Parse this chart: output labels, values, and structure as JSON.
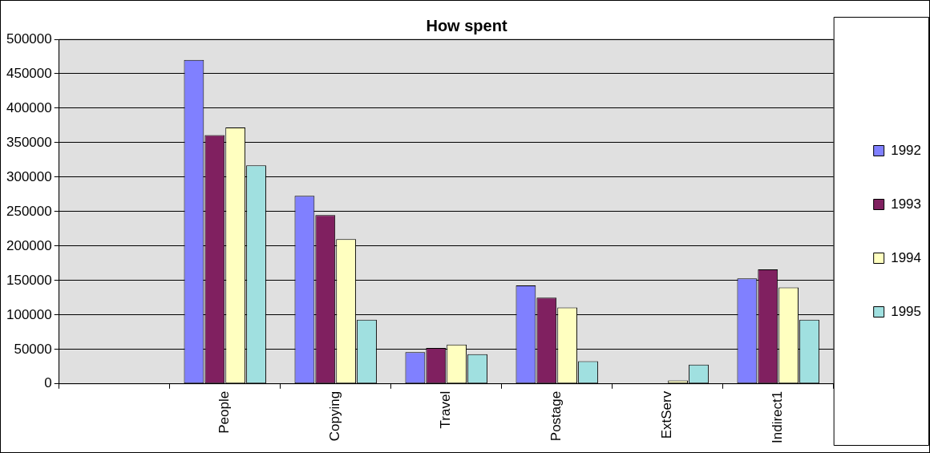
{
  "chart_data": {
    "type": "bar",
    "title": "How spent",
    "categories": [
      null,
      "People",
      "Copying",
      "Travel",
      "Postage",
      "ExtServ",
      "Indirect1"
    ],
    "series": [
      {
        "name": "1992",
        "color": "#8080ff",
        "values": [
          null,
          470000,
          273000,
          46000,
          143000,
          null,
          153000
        ]
      },
      {
        "name": "1993",
        "color": "#802060",
        "values": [
          null,
          361000,
          245000,
          52000,
          125000,
          null,
          166000
        ]
      },
      {
        "name": "1994",
        "color": "#ffffc0",
        "values": [
          null,
          372000,
          210000,
          57000,
          111000,
          5000,
          140000
        ]
      },
      {
        "name": "1995",
        "color": "#a0e0e0",
        "values": [
          null,
          317000,
          93000,
          43000,
          33000,
          28000,
          93000
        ]
      }
    ],
    "ylim": [
      0,
      500000
    ],
    "yticks": [
      0,
      50000,
      100000,
      150000,
      200000,
      250000,
      300000,
      350000,
      400000,
      450000,
      500000
    ],
    "grid": "y",
    "legend": "right"
  }
}
